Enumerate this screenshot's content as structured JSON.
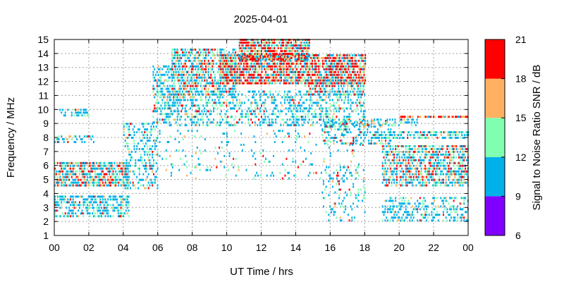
{
  "chart_data": {
    "type": "heatmap",
    "title": "2025-04-01",
    "xlabel": "UT Time / hrs",
    "ylabel": "Frequency / MHz",
    "xlim": [
      0,
      24
    ],
    "ylim": [
      1,
      15
    ],
    "x_ticks": [
      "00",
      "02",
      "04",
      "06",
      "08",
      "10",
      "12",
      "14",
      "16",
      "18",
      "20",
      "22",
      "00"
    ],
    "y_ticks": [
      "1",
      "2",
      "3",
      "4",
      "5",
      "6",
      "7",
      "8",
      "9",
      "10",
      "11",
      "12",
      "13",
      "14",
      "15"
    ],
    "grid": true,
    "colorbar": {
      "label": "Signal to Noise Ratio SNR / dB",
      "range": [
        6,
        21
      ],
      "ticks": [
        "6",
        "9",
        "12",
        "15",
        "18",
        "21"
      ],
      "bands": [
        {
          "from": 6,
          "to": 9,
          "color": "#8000ff"
        },
        {
          "from": 9,
          "to": 12,
          "color": "#00b0e8"
        },
        {
          "from": 12,
          "to": 15,
          "color": "#80ffb0"
        },
        {
          "from": 15,
          "to": 18,
          "color": "#ffb060"
        },
        {
          "from": 18,
          "to": 21,
          "color": "#ff0000"
        }
      ]
    },
    "regions": [
      {
        "t": [
          0.0,
          4.3
        ],
        "f": [
          4.5,
          6.2
        ],
        "density": 0.75,
        "snr": "mixed"
      },
      {
        "t": [
          0.0,
          4.3
        ],
        "f": [
          2.3,
          3.9
        ],
        "density": 0.55,
        "snr": "low"
      },
      {
        "t": [
          0.0,
          2.4
        ],
        "f": [
          7.6,
          8.2
        ],
        "density": 0.35,
        "snr": "low"
      },
      {
        "t": [
          0.3,
          2.0
        ],
        "f": [
          9.5,
          10.0
        ],
        "density": 0.4,
        "snr": "low"
      },
      {
        "t": [
          4.0,
          6.0
        ],
        "f": [
          4.3,
          9.0
        ],
        "density": 0.35,
        "snr": "low"
      },
      {
        "t": [
          5.7,
          7.0
        ],
        "f": [
          9.0,
          13.0
        ],
        "density": 0.45,
        "snr": "low"
      },
      {
        "t": [
          6.8,
          10.5
        ],
        "f": [
          11.0,
          14.2
        ],
        "density": 0.6,
        "snr": "mixed"
      },
      {
        "t": [
          6.5,
          18.0
        ],
        "f": [
          8.8,
          11.2
        ],
        "density": 0.4,
        "snr": "low"
      },
      {
        "t": [
          9.6,
          18.0
        ],
        "f": [
          11.8,
          13.8
        ],
        "density": 0.8,
        "snr": "high"
      },
      {
        "t": [
          10.7,
          14.8
        ],
        "f": [
          13.5,
          15.0
        ],
        "density": 0.85,
        "snr": "high"
      },
      {
        "t": [
          14.5,
          18.0
        ],
        "f": [
          11.0,
          12.0
        ],
        "density": 0.55,
        "snr": "mixed"
      },
      {
        "t": [
          6.0,
          18.0
        ],
        "f": [
          5.0,
          8.5
        ],
        "density": 0.08,
        "snr": "low"
      },
      {
        "t": [
          15.5,
          19.5
        ],
        "f": [
          7.5,
          9.2
        ],
        "density": 0.35,
        "snr": "low"
      },
      {
        "t": [
          15.5,
          18.0
        ],
        "f": [
          2.0,
          6.0
        ],
        "density": 0.15,
        "snr": "low"
      },
      {
        "t": [
          18.5,
          24.0
        ],
        "f": [
          7.9,
          8.3
        ],
        "density": 0.6,
        "snr": "low"
      },
      {
        "t": [
          19.0,
          24.0
        ],
        "f": [
          4.5,
          7.5
        ],
        "density": 0.6,
        "snr": "mixed"
      },
      {
        "t": [
          19.0,
          24.0
        ],
        "f": [
          2.0,
          3.8
        ],
        "density": 0.4,
        "snr": "low"
      },
      {
        "t": [
          20.0,
          24.0
        ],
        "f": [
          9.4,
          9.6
        ],
        "density": 0.8,
        "snr": "warm"
      },
      {
        "t": [
          18.0,
          21.0
        ],
        "f": [
          8.8,
          9.3
        ],
        "density": 0.4,
        "snr": "low"
      }
    ]
  }
}
